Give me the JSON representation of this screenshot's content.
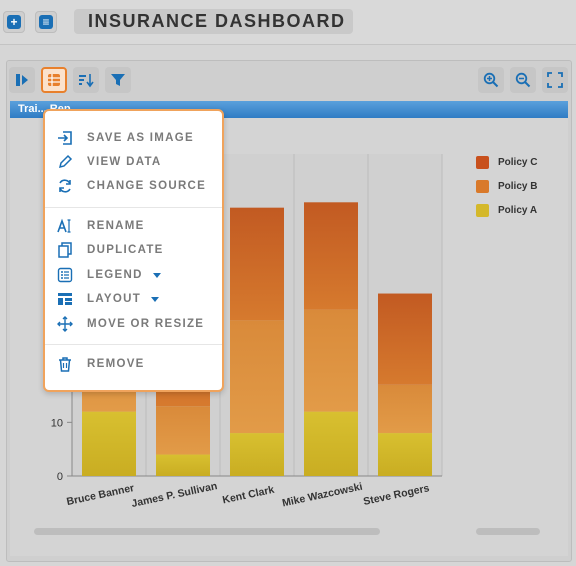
{
  "header": {
    "title": "INSURANCE DASHBOARD"
  },
  "chart_title": "Trai... Rep",
  "menu": {
    "items": [
      {
        "label": "SAVE AS IMAGE",
        "icon": "save-as-image-icon"
      },
      {
        "label": "VIEW DATA",
        "icon": "pencil-icon"
      },
      {
        "label": "CHANGE SOURCE",
        "icon": "refresh-icon"
      },
      {
        "label": "RENAME",
        "icon": "rename-icon"
      },
      {
        "label": "DUPLICATE",
        "icon": "duplicate-icon"
      },
      {
        "label": "LEGEND",
        "icon": "legend-icon"
      },
      {
        "label": "LAYOUT",
        "icon": "layout-icon"
      },
      {
        "label": "MOVE OR RESIZE",
        "icon": "move-icon"
      },
      {
        "label": "REMOVE",
        "icon": "trash-icon"
      }
    ]
  },
  "colors": {
    "accent": "#1a6fb5",
    "active": "#e8802c",
    "policy_c": "#c8501c",
    "policy_b": "#d9792a",
    "policy_a": "#d4b82a"
  },
  "chart_data": {
    "type": "bar",
    "stacked": true,
    "categories": [
      "Bruce Banner",
      "James P. Sullivan",
      "Kent Clark",
      "Mike Wazcowski",
      "Steve Rogers"
    ],
    "series": [
      {
        "name": "Policy A",
        "values": [
          12,
          4,
          8,
          12,
          8
        ]
      },
      {
        "name": "Policy B",
        "values": [
          13,
          9,
          21,
          19,
          9
        ]
      },
      {
        "name": "Policy C",
        "values": [
          22,
          23,
          21,
          20,
          17
        ]
      }
    ],
    "ylim": [
      0,
      60
    ],
    "yticks": [
      "0",
      "10"
    ],
    "legend": [
      "Policy C",
      "Policy B",
      "Policy A"
    ],
    "legend_position": "right",
    "grid": true
  }
}
